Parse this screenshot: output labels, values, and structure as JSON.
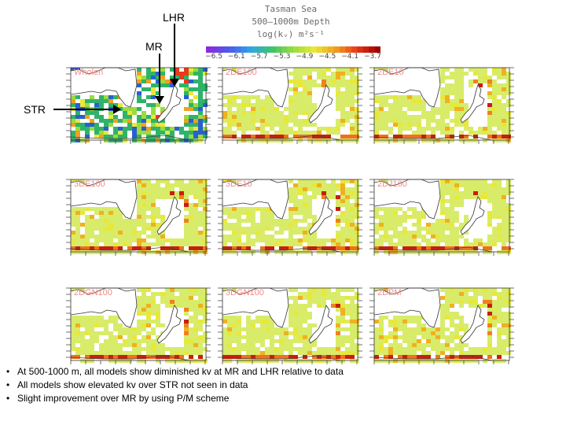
{
  "title": {
    "line1": "Tasman Sea",
    "line2": "500–1000m Depth",
    "line3": "log(kᵥ)  m²s⁻¹"
  },
  "colorbar": {
    "ticks": [
      "−6.5",
      "−6.1",
      "−5.7",
      "−5.3",
      "−4.9",
      "−4.5",
      "−4.1",
      "−3.7"
    ],
    "colors": [
      "#8a2be2",
      "#4a5ee8",
      "#2fa6e6",
      "#3cc46a",
      "#9adc3c",
      "#e8e83a",
      "#f0a020",
      "#e83a1a",
      "#a00000"
    ]
  },
  "panels": [
    {
      "label": "Wholen",
      "type": "data"
    },
    {
      "label": "2DE100",
      "type": "model"
    },
    {
      "label": "2DE10",
      "type": "model"
    },
    {
      "label": "3DE100",
      "type": "model"
    },
    {
      "label": "3DE10",
      "type": "model"
    },
    {
      "label": "2DJ100",
      "type": "model"
    },
    {
      "label": "2DGN100",
      "type": "model"
    },
    {
      "label": "3DGN100",
      "type": "model"
    },
    {
      "label": "2DPM",
      "type": "model"
    }
  ],
  "annotations": {
    "lhr": "LHR",
    "mr": "MR",
    "str": "STR"
  },
  "bullets": [
    "At 500-1000 m, all models show diminished kv at MR and LHR relative to data",
    "All models show elevated kv over STR not seen in data",
    "Slight improvement over MR by using P/M scheme"
  ]
}
